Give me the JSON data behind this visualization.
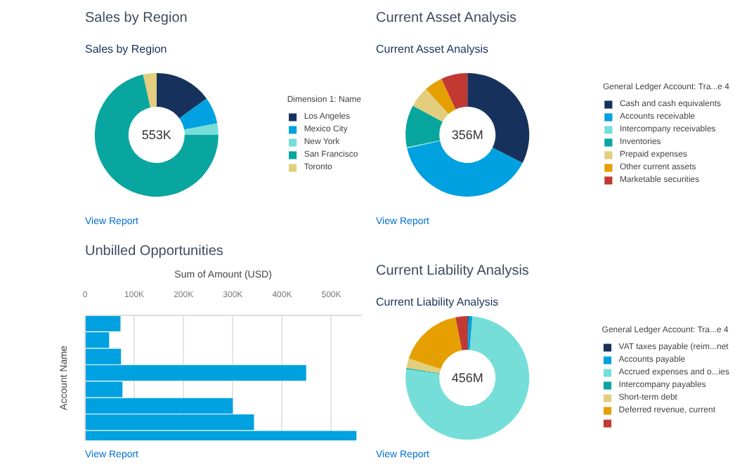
{
  "chart_data": [
    {
      "type": "donut",
      "title": "Sales by Region",
      "subtitle": "Sales by Region",
      "legend_title": "Dimension 1: Name",
      "legend": "right",
      "categories": [
        "Los Angeles",
        "Mexico City",
        "New York",
        "San Francisco",
        "Toronto"
      ],
      "values": [
        15,
        7,
        3,
        71.5,
        3.5
      ],
      "colors": [
        "#16325c",
        "#00a1e0",
        "#76ded9",
        "#08a69e",
        "#e2ce7d"
      ],
      "annotations": [
        "553K",
        "View Report"
      ]
    },
    {
      "type": "donut",
      "title": "Current Asset Analysis",
      "subtitle": "Current Asset Analysis",
      "legend_title": "General Ledger Account: Tra...e 4",
      "legend": "right",
      "categories": [
        "Cash and cash equivalents",
        "Accounts receivable",
        "Intercompany receivables",
        "Inventories",
        "Prepaid expenses",
        "Other current assets",
        "Marketable securities"
      ],
      "values": [
        32.5,
        39,
        0.3,
        11,
        5.5,
        4.8,
        6.9
      ],
      "colors": [
        "#16325c",
        "#00a1e0",
        "#76ded9",
        "#08a69e",
        "#e2ce7d",
        "#e69f00",
        "#c23934"
      ],
      "annotations": [
        "356M",
        "View Report"
      ]
    },
    {
      "type": "bar",
      "orientation": "horizontal",
      "title": "Unbilled Opportunities",
      "xlabel": "Sum of Amount (USD)",
      "ylabel": "Account Name",
      "categories": [
        null,
        null,
        null,
        null,
        null,
        null,
        null,
        null
      ],
      "values": [
        72000,
        49000,
        73000,
        449000,
        76000,
        300000,
        343000,
        551000
      ],
      "color": "#00a1e0",
      "xlim": [
        0,
        562000
      ],
      "xticks": [
        0,
        {
          "value": 100000,
          "label": "100K"
        },
        {
          "value": 200000,
          "label": "200K"
        },
        {
          "value": 300000,
          "label": "300K"
        },
        {
          "value": 400000,
          "label": "400K"
        },
        {
          "value": 500000,
          "label": "500K"
        }
      ],
      "grid": "x",
      "tick_labels": "x",
      "annotations": [
        "View Report"
      ]
    },
    {
      "type": "donut",
      "title": "Current Liability Analysis",
      "subtitle": "Current Liability Analysis",
      "legend_title": "General Ledger Account: Tra...e 4",
      "legend": "right",
      "categories": [
        "VAT taxes payable (reim...net",
        "Accounts payable",
        "Accrued expenses and o...ies",
        "Intercompany payables",
        "Short-term debt",
        "Deferred revenue, current",
        null
      ],
      "values": [
        0.3,
        1,
        76,
        0.3,
        2.5,
        16.8,
        3.1
      ],
      "colors": [
        "#16325c",
        "#00a1e0",
        "#76ded9",
        "#08a69e",
        "#e2ce7d",
        "#e69f00",
        "#c23934"
      ],
      "annotations": [
        "456M",
        "View Report"
      ]
    }
  ]
}
